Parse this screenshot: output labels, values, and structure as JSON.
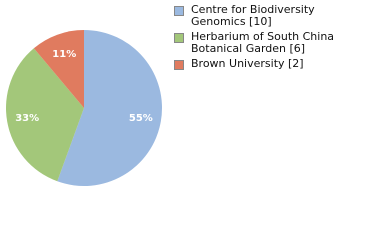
{
  "chart_data": {
    "type": "pie",
    "categories": [
      "Centre for Biodiversity Genomics [10]",
      "Herbarium of South China Botanical Garden [6]",
      "Brown University [2]"
    ],
    "values": [
      55,
      33,
      11
    ],
    "value_labels": [
      "55%",
      "33%",
      "11%"
    ],
    "colors": [
      "#9bb9e0",
      "#a3c77a",
      "#e07b5f"
    ]
  }
}
